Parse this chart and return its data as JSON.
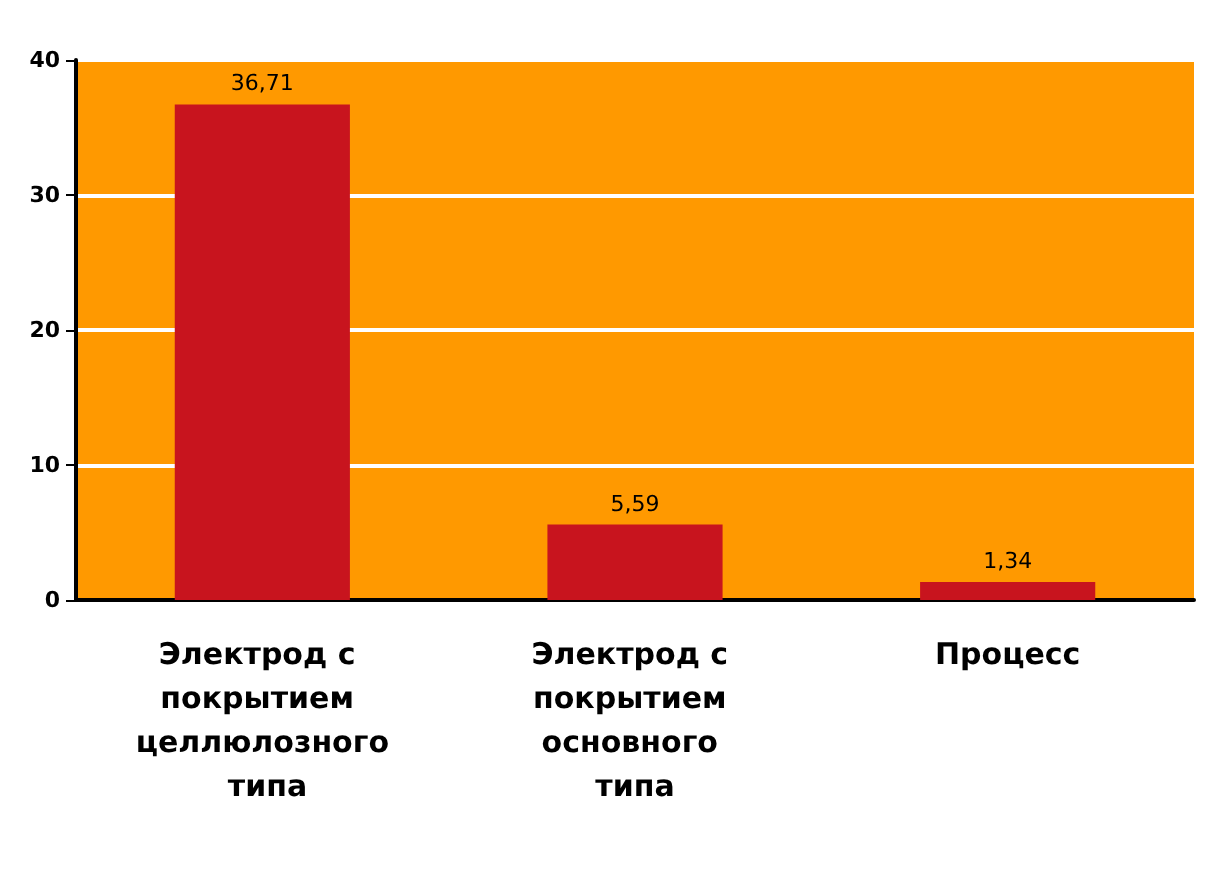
{
  "chart_data": {
    "type": "bar",
    "categories": [
      "Электрод с покрытием целлюлозного типа",
      "Электрод с покрытием основного типа",
      "Процесс"
    ],
    "values": [
      36.71,
      5.59,
      1.34
    ],
    "value_labels": [
      "36,71",
      "5,59",
      "1,34"
    ],
    "color": "#c8141e",
    "ylim": [
      0,
      40
    ],
    "yticks": [
      0,
      10,
      20,
      30,
      40
    ],
    "grid": "y"
  }
}
